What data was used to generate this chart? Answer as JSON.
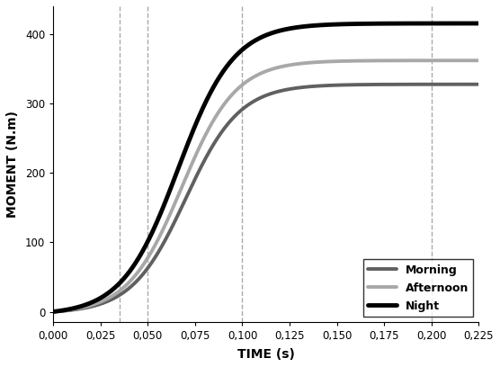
{
  "title": "",
  "xlabel": "TIME (s)",
  "ylabel": "MOMENT (N.m)",
  "xlim": [
    0.0,
    0.225
  ],
  "ylim": [
    -15,
    440
  ],
  "xticks": [
    0.0,
    0.025,
    0.05,
    0.075,
    0.1,
    0.125,
    0.15,
    0.175,
    0.2,
    0.225
  ],
  "yticks": [
    0,
    100,
    200,
    300,
    400
  ],
  "xtick_labels": [
    "0,000",
    "0,025",
    "0,050",
    "0,075",
    "0,100",
    "0,125",
    "0,150",
    "0,175",
    "0,200",
    "0,225"
  ],
  "ytick_labels": [
    "0",
    "100",
    "200",
    "300",
    "400"
  ],
  "vlines": [
    0.035,
    0.05,
    0.1,
    0.2
  ],
  "series": [
    {
      "label": "Morning",
      "color": "#606060",
      "linewidth": 2.8,
      "asymptote": 330,
      "midpoint": 0.07,
      "steepness": 70
    },
    {
      "label": "Afternoon",
      "color": "#a8a8a8",
      "linewidth": 2.8,
      "asymptote": 365,
      "midpoint": 0.068,
      "steepness": 70
    },
    {
      "label": "Night",
      "color": "#000000",
      "linewidth": 3.5,
      "asymptote": 420,
      "midpoint": 0.066,
      "steepness": 68
    }
  ],
  "legend_loc": "lower right",
  "legend_fontsize": 9,
  "background_color": "#ffffff",
  "vline_color": "#aaaaaa",
  "vline_style": "--",
  "vline_linewidth": 1.0
}
